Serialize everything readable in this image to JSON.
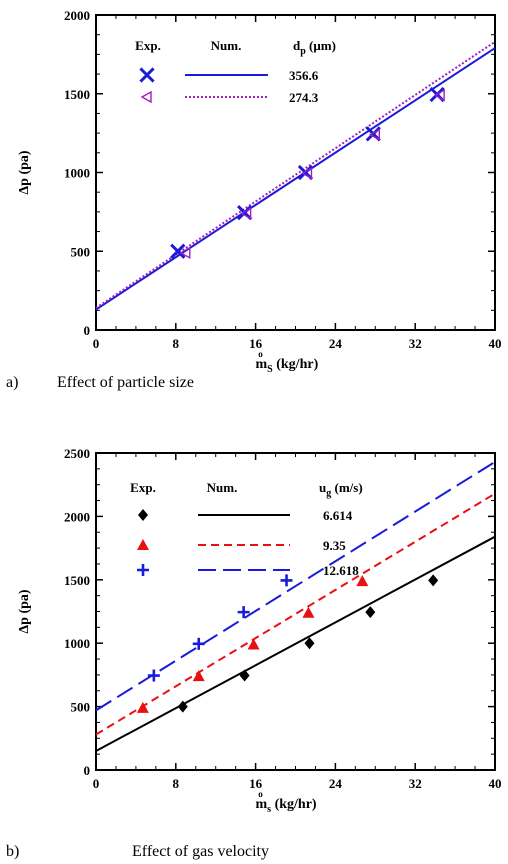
{
  "chart_data": [
    {
      "type": "scatter",
      "caption_letter": "a)",
      "caption": "Effect of particle size",
      "xlabel_prefix": "m",
      "xlabel_over": "o",
      "xlabel_sub": "S",
      "xlabel_rest": " (kg/hr)",
      "ylabel": "Δp (pa)",
      "xlim": [
        0,
        40
      ],
      "ylim": [
        0,
        2000
      ],
      "xticks": [
        0,
        8,
        16,
        24,
        32,
        40
      ],
      "yticks": [
        0,
        500,
        1000,
        1500,
        2000
      ],
      "legend": {
        "exp_label": "Exp.",
        "num_label": "Num.",
        "param_main": "d",
        "param_sub": "p",
        "param_unit": " (μm)"
      },
      "series": [
        {
          "name": "356.6",
          "color": "#1a1adb",
          "marker": "x",
          "line_style": "solid",
          "points": [
            [
              8.2,
              500
            ],
            [
              14.9,
              745
            ],
            [
              21.0,
              1000
            ],
            [
              27.8,
              1245
            ],
            [
              34.2,
              1495
            ]
          ],
          "line": [
            [
              0,
              130
            ],
            [
              40,
              1790
            ]
          ]
        },
        {
          "name": "274.3",
          "color": "#a020c0",
          "marker": "triangle-left",
          "line_style": "dotted",
          "points": [
            [
              9.0,
              490
            ],
            [
              15.1,
              740
            ],
            [
              21.2,
              995
            ],
            [
              28.0,
              1240
            ],
            [
              34.5,
              1490
            ]
          ],
          "line": [
            [
              0,
              140
            ],
            [
              40,
              1830
            ]
          ]
        }
      ]
    },
    {
      "type": "scatter",
      "caption_letter": "b)",
      "caption": "Effect of gas velocity",
      "xlabel_prefix": "m",
      "xlabel_over": "o",
      "xlabel_sub": "s",
      "xlabel_rest": " (kg/hr)",
      "ylabel": "Δp (pa)",
      "xlim": [
        0,
        40
      ],
      "ylim": [
        0,
        2500
      ],
      "xticks": [
        0,
        8,
        16,
        24,
        32,
        40
      ],
      "yticks": [
        0,
        500,
        1000,
        1500,
        2000,
        2500
      ],
      "legend": {
        "exp_label": "Exp.",
        "num_label": "Num.",
        "param_main": "u",
        "param_sub": "g",
        "param_unit": " (m/s)"
      },
      "series": [
        {
          "name": "6.614",
          "color": "#000000",
          "marker": "diamond",
          "line_style": "solid",
          "points": [
            [
              8.7,
              500
            ],
            [
              14.9,
              745
            ],
            [
              21.4,
              1000
            ],
            [
              27.5,
              1245
            ],
            [
              33.8,
              1495
            ]
          ],
          "line": [
            [
              0,
              150
            ],
            [
              40,
              1840
            ]
          ]
        },
        {
          "name": "9.35",
          "color": "#e81010",
          "marker": "triangle",
          "line_style": "dashed",
          "points": [
            [
              4.7,
              490
            ],
            [
              10.3,
              740
            ],
            [
              15.8,
              990
            ],
            [
              21.3,
              1240
            ],
            [
              26.7,
              1490
            ]
          ],
          "line": [
            [
              0,
              280
            ],
            [
              40,
              2180
            ]
          ]
        },
        {
          "name": "12.618",
          "color": "#1a1adb",
          "marker": "plus",
          "line_style": "longdash",
          "points": [
            [
              5.8,
              745
            ],
            [
              10.3,
              995
            ],
            [
              14.8,
              1245
            ],
            [
              19.1,
              1495
            ]
          ],
          "line": [
            [
              0,
              470
            ],
            [
              40,
              2430
            ]
          ]
        }
      ]
    }
  ]
}
